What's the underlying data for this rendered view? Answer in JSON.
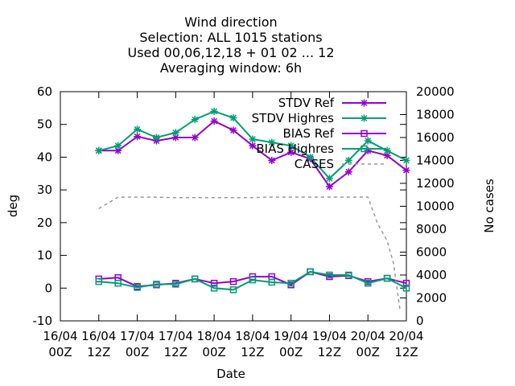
{
  "chart_data": {
    "type": "line",
    "title": [
      "Wind direction",
      "Selection: ALL    1015 stations",
      "Used  00,06,12,18  + 01 02 ... 12",
      "Averaging window:  6h"
    ],
    "xlabel": "Date",
    "ylabel": "deg",
    "y2label": "No cases",
    "xlim": [
      0,
      102
    ],
    "ylim": [
      -10,
      60
    ],
    "y2lim": [
      0,
      20000
    ],
    "x_ticks": [
      {
        "pos": 0,
        "line1": "16/04",
        "line2": "00Z"
      },
      {
        "pos": 12,
        "line1": "16/04",
        "line2": "12Z"
      },
      {
        "pos": 24,
        "line1": "17/04",
        "line2": "00Z"
      },
      {
        "pos": 36,
        "line1": "17/04",
        "line2": "12Z"
      },
      {
        "pos": 48,
        "line1": "18/04",
        "line2": "00Z"
      },
      {
        "pos": 60,
        "line1": "18/04",
        "line2": "12Z"
      },
      {
        "pos": 72,
        "line1": "19/04",
        "line2": "00Z"
      },
      {
        "pos": 84,
        "line1": "19/04",
        "line2": "12Z"
      },
      {
        "pos": 96,
        "line1": "20/04",
        "line2": "00Z"
      },
      {
        "pos": 108,
        "line1": "20/04",
        "line2": "12Z"
      }
    ],
    "y_ticks": [
      -10,
      0,
      10,
      20,
      30,
      40,
      50,
      60
    ],
    "y2_ticks": [
      0,
      2000,
      4000,
      6000,
      8000,
      10000,
      12000,
      14000,
      16000,
      18000,
      20000
    ],
    "x": [
      12,
      18,
      24,
      30,
      36,
      42,
      48,
      54,
      60,
      66,
      72,
      78,
      84,
      90,
      96,
      102,
      108
    ],
    "series": [
      {
        "name": "STDV Ref",
        "color": "#9400d3",
        "marker": "star",
        "axis": "y",
        "values": [
          42,
          42,
          46.3,
          45,
          46,
          46,
          51,
          48.2,
          43.5,
          39,
          41.5,
          39.5,
          31,
          35.5,
          42,
          40.5,
          36
        ]
      },
      {
        "name": "STDV Highres",
        "color": "#009e73",
        "marker": "star",
        "axis": "y",
        "values": [
          42,
          43.5,
          48.5,
          46,
          47.5,
          51.5,
          54,
          52,
          45.5,
          44.5,
          43.5,
          40,
          33.5,
          39,
          45,
          42,
          39
        ]
      },
      {
        "name": "BIAS Ref",
        "color": "#9400d3",
        "marker": "square",
        "axis": "y",
        "values": [
          2.8,
          3.2,
          0.5,
          1,
          1.5,
          2.8,
          1.5,
          2,
          3.5,
          3.5,
          1,
          5,
          3.5,
          3.8,
          2,
          3,
          1.5
        ]
      },
      {
        "name": "BIAS Highres",
        "color": "#009e73",
        "marker": "square",
        "axis": "y",
        "values": [
          2,
          1.5,
          0.2,
          1.2,
          1.2,
          2.8,
          0,
          -0.5,
          2.5,
          1.8,
          1.5,
          5,
          4,
          4,
          1.5,
          3,
          0
        ]
      },
      {
        "name": "CASES",
        "color": "#999999",
        "marker": "none",
        "dash": true,
        "axis": "y2",
        "x": [
          12,
          18,
          24,
          30,
          36,
          42,
          48,
          54,
          60,
          66,
          72,
          78,
          84,
          90,
          96,
          99,
          102,
          104,
          106
        ],
        "values": [
          9800,
          10800,
          10800,
          10800,
          10750,
          10750,
          10750,
          10750,
          10750,
          10800,
          10800,
          10800,
          10800,
          10800,
          10800,
          8500,
          7000,
          5000,
          1000
        ]
      }
    ],
    "legend_position": "top-right",
    "grid": false
  }
}
